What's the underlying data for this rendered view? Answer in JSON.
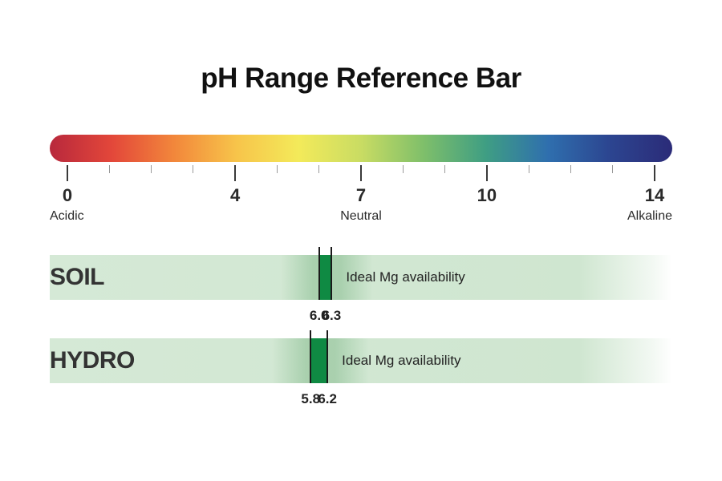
{
  "title": "pH Range Reference Bar",
  "scale": {
    "min": 0,
    "max": 14,
    "gradient_colors": [
      "#b8283c",
      "#e3473a",
      "#f2873b",
      "#f7c44a",
      "#f3ea5a",
      "#c9dc63",
      "#7fbf6a",
      "#3f9e83",
      "#2f6fae",
      "#2c4590",
      "#2b2b78"
    ],
    "labeled_ticks": [
      {
        "value": 0,
        "label": "0"
      },
      {
        "value": 4,
        "label": "4"
      },
      {
        "value": 7,
        "label": "7"
      },
      {
        "value": 10,
        "label": "10"
      },
      {
        "value": 14,
        "label": "14"
      }
    ],
    "words": {
      "acidic": "Acidic",
      "neutral": "Neutral",
      "alkaline": "Alkaline"
    }
  },
  "tracks": [
    {
      "label": "SOIL",
      "low": 6.0,
      "high": 6.3,
      "low_label": "6.0",
      "high_label": "6.3",
      "text": "Ideal Mg availability"
    },
    {
      "label": "HYDRO",
      "low": 5.8,
      "high": 6.2,
      "low_label": "5.8",
      "high_label": "6.2",
      "text": "Ideal Mg availability"
    }
  ],
  "colors": {
    "ideal": "#0f8a43",
    "band": "#d5e9d6"
  }
}
